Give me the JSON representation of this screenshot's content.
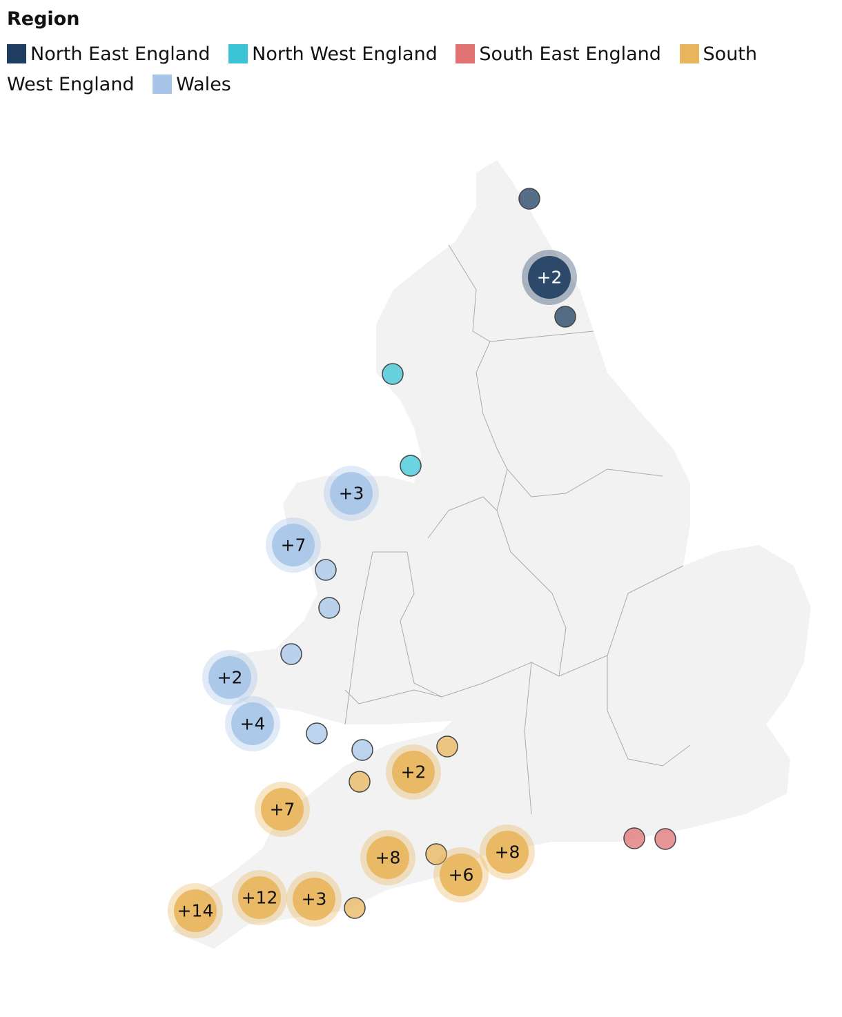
{
  "legend_title": "Region",
  "regions": [
    {
      "name": "North East England",
      "color": "#1f3d60",
      "labels": [
        null,
        "+2",
        null
      ]
    },
    {
      "name": "North West England",
      "color": "#3bc4d6",
      "labels": [
        null,
        null
      ]
    },
    {
      "name": "South East England",
      "color": "#e07272",
      "labels": [
        null,
        null
      ]
    },
    {
      "name": "South West England",
      "color": "#e8b55c",
      "labels": [
        null,
        "+2",
        null,
        "+7",
        "+8",
        null,
        "+8",
        "+6",
        "+14",
        "+12",
        "+3",
        null
      ]
    },
    {
      "name": "Wales",
      "color": "#a7c5e8",
      "labels": [
        "+3",
        "+7",
        null,
        null,
        null,
        "+2",
        "+4",
        null,
        null
      ]
    }
  ]
}
